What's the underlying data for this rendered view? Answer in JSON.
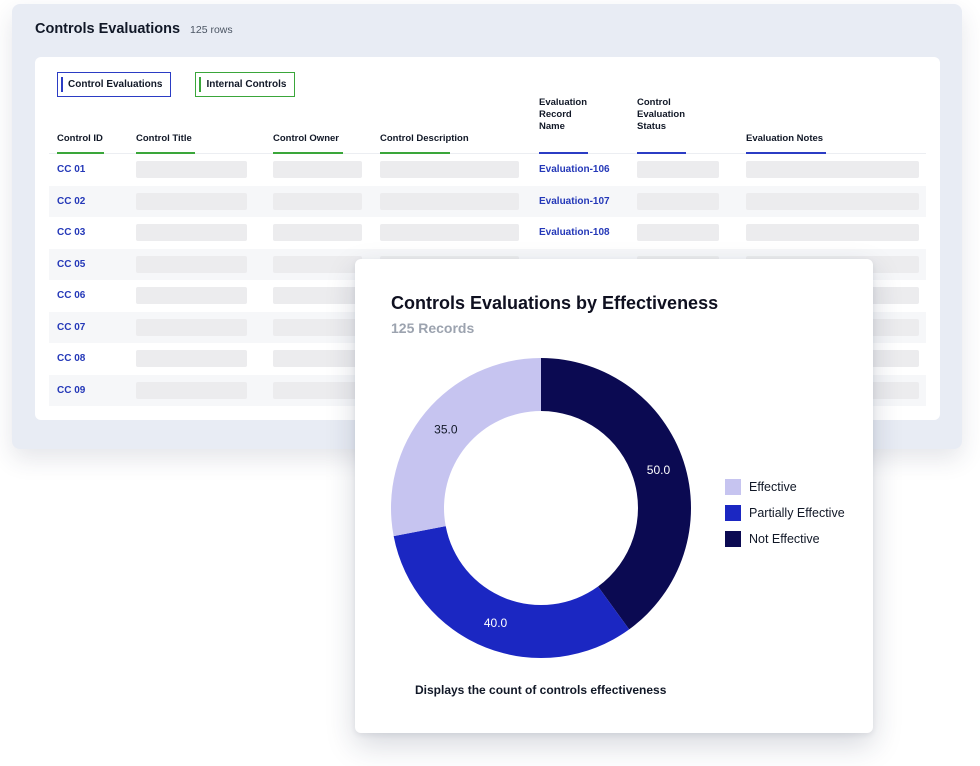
{
  "page": {
    "title": "Controls Evaluations",
    "row_count_label": "125 rows"
  },
  "tabs": [
    {
      "label": "Control Evaluations",
      "color": "#2b3cc4"
    },
    {
      "label": "Internal Controls",
      "color": "#3aa63a"
    }
  ],
  "table": {
    "columns": [
      {
        "label": "Control ID",
        "color": "#3aa63a"
      },
      {
        "label": "Control Title",
        "color": "#3aa63a"
      },
      {
        "label": "Control Owner",
        "color": "#3aa63a"
      },
      {
        "label": "Control Description",
        "color": "#3aa63a"
      },
      {
        "label": "Evaluation\nRecord\nName",
        "color": "#2b3cc4"
      },
      {
        "label": "Control\nEvaluation\nStatus",
        "color": "#2b3cc4"
      },
      {
        "label": "Evaluation Notes",
        "color": "#2b3cc4"
      }
    ],
    "rows": [
      {
        "id": "CC 01",
        "evaluation": "Evaluation-106"
      },
      {
        "id": "CC 02",
        "evaluation": "Evaluation-107"
      },
      {
        "id": "CC 03",
        "evaluation": "Evaluation-108"
      },
      {
        "id": "CC 05",
        "evaluation": ""
      },
      {
        "id": "CC 06",
        "evaluation": ""
      },
      {
        "id": "CC 07",
        "evaluation": ""
      },
      {
        "id": "CC 08",
        "evaluation": ""
      },
      {
        "id": "CC 09",
        "evaluation": ""
      }
    ]
  },
  "chart_card": {
    "title": "Controls Evaluations by Effectiveness",
    "subtitle": "125 Records",
    "description": "Displays the count of controls effectiveness"
  },
  "chart_data": {
    "type": "pie",
    "donut": true,
    "title": "Controls Evaluations by Effectiveness",
    "categories": [
      "Not Effective",
      "Partially Effective",
      "Effective"
    ],
    "values": [
      50.0,
      40.0,
      35.0
    ],
    "value_labels": [
      "50.0",
      "40.0",
      "35.0"
    ],
    "colors": [
      "#0b0a52",
      "#1b27c2",
      "#c6c4f0"
    ],
    "legend": {
      "position": "right",
      "items": [
        {
          "label": "Effective",
          "color": "#c6c4f0"
        },
        {
          "label": "Partially Effective",
          "color": "#1b27c2"
        },
        {
          "label": "Not Effective",
          "color": "#0b0a52"
        }
      ]
    }
  }
}
